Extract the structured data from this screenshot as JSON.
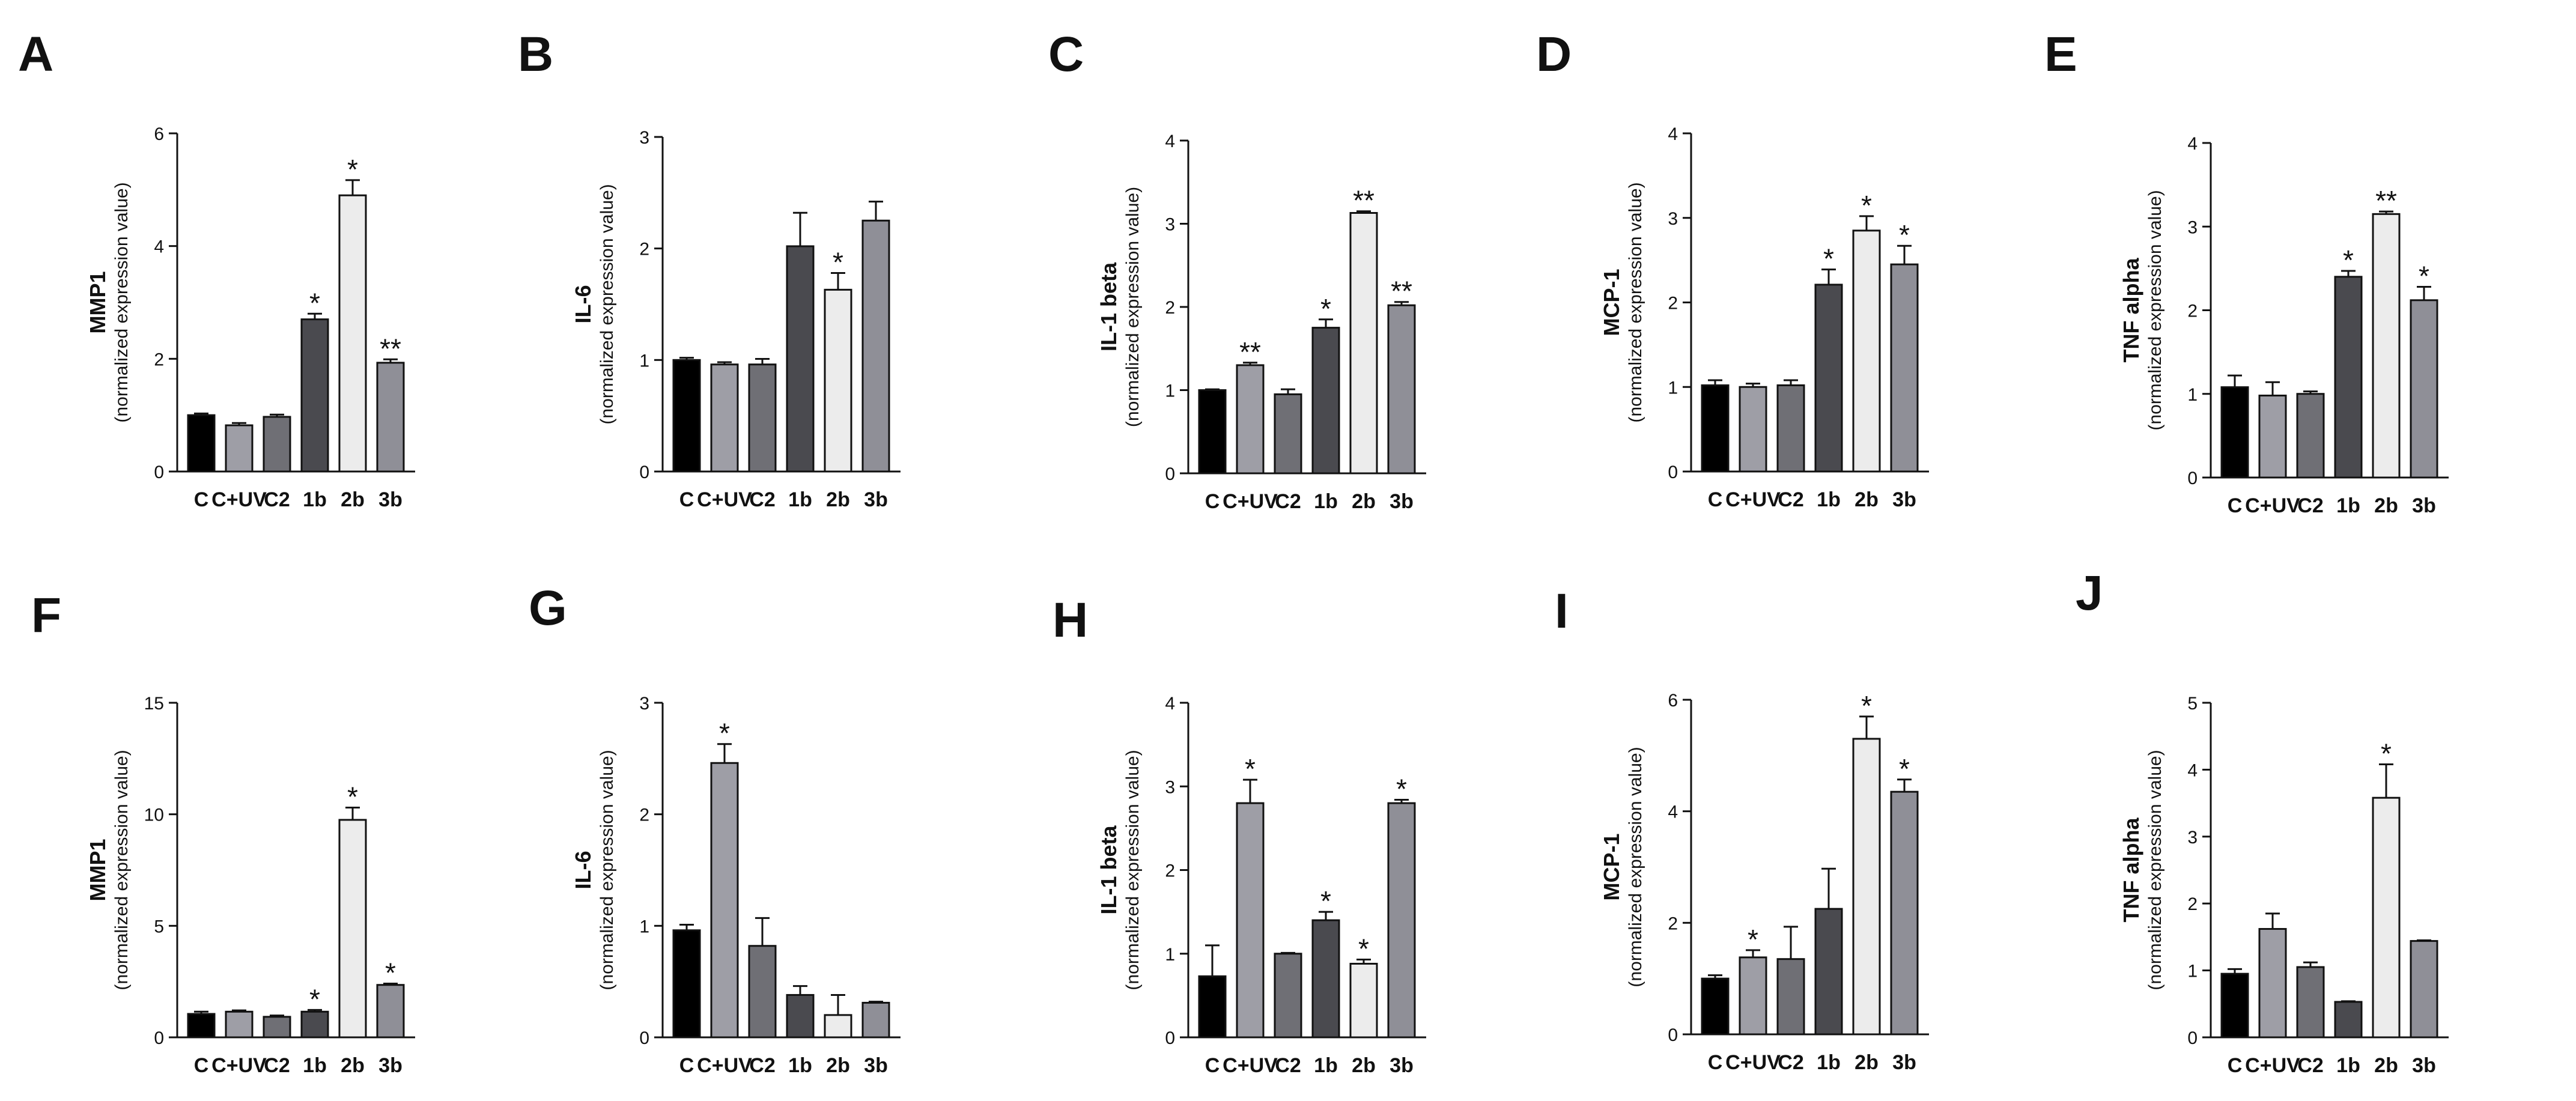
{
  "figure": {
    "ylabel_sub": "(normalized expression value)",
    "colors": [
      "#000000",
      "#9e9ea6",
      "#6f6f75",
      "#4a4a4f",
      "#ececec",
      "#8f8f97"
    ]
  },
  "chart_data": [
    {
      "letter": "A",
      "type": "bar",
      "ylabel": "MMP1",
      "ylim": [
        0,
        6
      ],
      "ticks": [
        0,
        2,
        4,
        6
      ],
      "categories": [
        "C",
        "C+UV",
        "C2",
        "1b",
        "2b",
        "3b"
      ],
      "values": [
        1.0,
        0.82,
        0.97,
        2.7,
        4.9,
        1.93
      ],
      "errors": [
        0.03,
        0.04,
        0.04,
        0.1,
        0.27,
        0.06
      ],
      "significance": [
        "",
        "",
        "",
        "*",
        "*",
        "**"
      ]
    },
    {
      "letter": "B",
      "type": "bar",
      "ylabel": "IL-6",
      "ylim": [
        0,
        3
      ],
      "ticks": [
        0,
        1,
        2,
        3
      ],
      "categories": [
        "C",
        "C+UV",
        "C2",
        "1b",
        "2b",
        "3b"
      ],
      "values": [
        1.0,
        0.96,
        0.96,
        2.02,
        1.63,
        2.25
      ],
      "errors": [
        0.02,
        0.02,
        0.05,
        0.3,
        0.15,
        0.17
      ],
      "significance": [
        "",
        "",
        "",
        "",
        "*",
        ""
      ]
    },
    {
      "letter": "C",
      "type": "bar",
      "ylabel": "IL-1 beta",
      "ylim": [
        0,
        4
      ],
      "ticks": [
        0,
        1,
        2,
        3,
        4
      ],
      "categories": [
        "C",
        "C+UV",
        "C2",
        "1b",
        "2b",
        "3b"
      ],
      "values": [
        1.0,
        1.3,
        0.95,
        1.75,
        3.13,
        2.02
      ],
      "errors": [
        0.01,
        0.03,
        0.06,
        0.1,
        0.02,
        0.04
      ],
      "significance": [
        "",
        "**",
        "",
        "*",
        "**",
        "**"
      ]
    },
    {
      "letter": "D",
      "type": "bar",
      "ylabel": "MCP-1",
      "ylim": [
        0,
        4
      ],
      "ticks": [
        0,
        1,
        2,
        3,
        4
      ],
      "categories": [
        "C",
        "C+UV",
        "C2",
        "1b",
        "2b",
        "3b"
      ],
      "values": [
        1.02,
        1.0,
        1.02,
        2.21,
        2.85,
        2.45
      ],
      "errors": [
        0.06,
        0.04,
        0.06,
        0.18,
        0.17,
        0.22
      ],
      "significance": [
        "",
        "",
        "",
        "*",
        "*",
        "*"
      ]
    },
    {
      "letter": "E",
      "type": "bar",
      "ylabel": "TNF alpha",
      "ylim": [
        0,
        4
      ],
      "ticks": [
        0,
        1,
        2,
        3,
        4
      ],
      "categories": [
        "C",
        "C+UV",
        "C2",
        "1b",
        "2b",
        "3b"
      ],
      "values": [
        1.08,
        0.98,
        1.0,
        2.4,
        3.15,
        2.12
      ],
      "errors": [
        0.14,
        0.16,
        0.03,
        0.07,
        0.03,
        0.16
      ],
      "significance": [
        "",
        "",
        "",
        "*",
        "**",
        "*"
      ]
    },
    {
      "letter": "F",
      "type": "bar",
      "ylabel": "MMP1",
      "ylim": [
        0,
        15
      ],
      "ticks": [
        0,
        5,
        10,
        15
      ],
      "categories": [
        "C",
        "C+UV",
        "C2",
        "1b",
        "2b",
        "3b"
      ],
      "values": [
        1.05,
        1.15,
        0.92,
        1.15,
        9.75,
        2.35
      ],
      "errors": [
        0.1,
        0.06,
        0.06,
        0.08,
        0.55,
        0.06
      ],
      "significance": [
        "",
        "",
        "",
        "*",
        "*",
        "*"
      ]
    },
    {
      "letter": "G",
      "type": "bar",
      "ylabel": "IL-6",
      "ylim": [
        0,
        3
      ],
      "ticks": [
        0,
        1,
        2,
        3
      ],
      "categories": [
        "C",
        "C+UV",
        "C2",
        "1b",
        "2b",
        "3b"
      ],
      "values": [
        0.96,
        2.46,
        0.82,
        0.38,
        0.2,
        0.31
      ],
      "errors": [
        0.05,
        0.17,
        0.25,
        0.08,
        0.18,
        0.01
      ],
      "significance": [
        "",
        "*",
        "",
        "",
        "",
        ""
      ]
    },
    {
      "letter": "H",
      "type": "bar",
      "ylabel": "IL-1 beta",
      "ylim": [
        0,
        4
      ],
      "ticks": [
        0,
        1,
        2,
        3,
        4
      ],
      "categories": [
        "C",
        "C+UV",
        "C2",
        "1b",
        "2b",
        "3b"
      ],
      "values": [
        0.73,
        2.8,
        1.0,
        1.4,
        0.88,
        2.8
      ],
      "errors": [
        0.37,
        0.28,
        0.01,
        0.1,
        0.05,
        0.04
      ],
      "significance": [
        "",
        "*",
        "",
        "*",
        "*",
        "*"
      ]
    },
    {
      "letter": "I",
      "type": "bar",
      "ylabel": "MCP-1",
      "ylim": [
        0,
        6
      ],
      "ticks": [
        0,
        2,
        4,
        6
      ],
      "categories": [
        "C",
        "C+UV",
        "C2",
        "1b",
        "2b",
        "3b"
      ],
      "values": [
        1.0,
        1.38,
        1.35,
        2.25,
        5.3,
        4.35
      ],
      "errors": [
        0.06,
        0.13,
        0.58,
        0.72,
        0.4,
        0.22
      ],
      "significance": [
        "",
        "*",
        "",
        "",
        "*",
        "*"
      ]
    },
    {
      "letter": "J",
      "type": "bar",
      "ylabel": "TNF alpha",
      "ylim": [
        0,
        5
      ],
      "ticks": [
        0,
        1,
        2,
        3,
        4,
        5
      ],
      "categories": [
        "C",
        "C+UV",
        "C2",
        "1b",
        "2b",
        "3b"
      ],
      "values": [
        0.95,
        1.62,
        1.05,
        0.53,
        3.58,
        1.44
      ],
      "errors": [
        0.07,
        0.23,
        0.07,
        0.01,
        0.5,
        0.01
      ],
      "significance": [
        "",
        "",
        "",
        "",
        "*",
        ""
      ]
    }
  ]
}
